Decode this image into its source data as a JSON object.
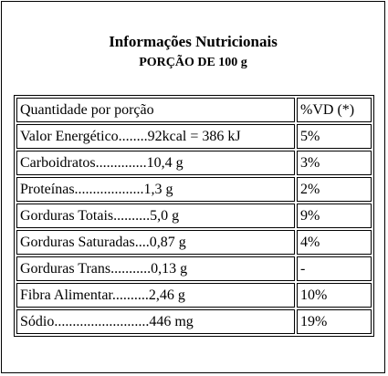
{
  "label": {
    "title": "Informações Nutricionais",
    "subtitle": "PORÇÃO DE 100 g"
  },
  "table": {
    "header": {
      "quantity": "Quantidade por porção",
      "dv": "%VD (*)"
    },
    "rows": [
      {
        "item": "Valor Energético........92kcal = 386 kJ",
        "dv": "5%"
      },
      {
        "item": "Carboidratos..............10,4 g",
        "dv": "3%"
      },
      {
        "item": "Proteínas...................1,3 g",
        "dv": "2%"
      },
      {
        "item": "Gorduras Totais..........5,0 g",
        "dv": "9%"
      },
      {
        "item": "Gorduras Saturadas....0,87 g",
        "dv": "4%"
      },
      {
        "item": "Gorduras Trans...........0,13 g",
        "dv": "-"
      },
      {
        "item": "Fibra Alimentar..........2,46 g",
        "dv": "10%"
      },
      {
        "item": "Sódio..........................446 mg",
        "dv": "19%"
      }
    ]
  }
}
